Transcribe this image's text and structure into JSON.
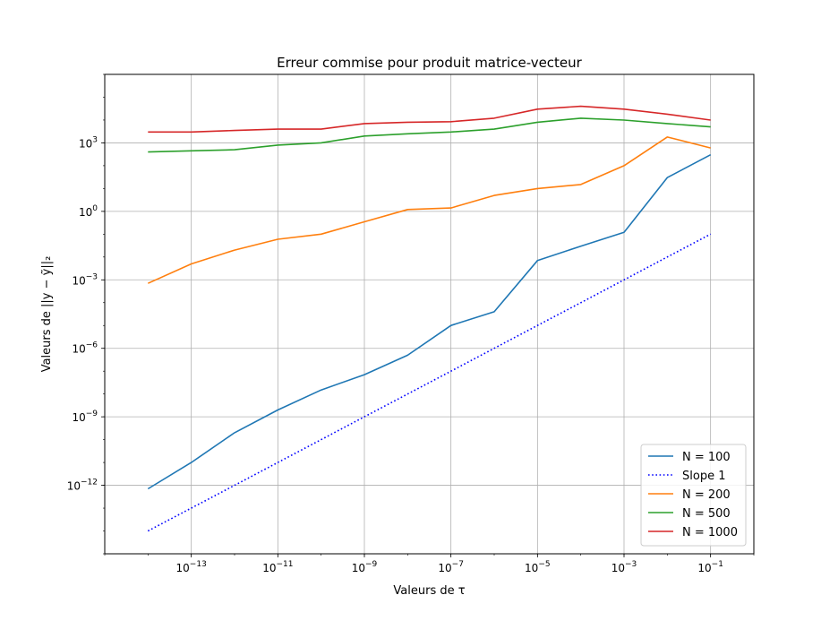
{
  "chart_data": {
    "type": "line",
    "title": "Erreur commise pour produit matrice-vecteur",
    "xlabel": "Valeurs de τ",
    "ylabel": "Valeurs de ||y − ỹ||₂",
    "xscale": "log",
    "yscale": "log",
    "xlim": [
      1e-15,
      1.0
    ],
    "ylim": [
      1e-15,
      1000000.0
    ],
    "grid": true,
    "legend_position": "lower right",
    "x": [
      1e-14,
      1e-13,
      1e-12,
      1e-11,
      1e-10,
      1e-09,
      1e-08,
      1e-07,
      1e-06,
      1e-05,
      0.0001,
      0.001,
      0.01,
      0.1
    ],
    "series": [
      {
        "name": "N = 100",
        "color": "#1f77b4",
        "style": "solid",
        "values": [
          7e-13,
          1e-11,
          2e-10,
          2e-09,
          1.5e-08,
          7e-08,
          5e-07,
          1e-05,
          4e-05,
          0.007,
          0.03,
          0.12,
          30.0,
          300.0
        ]
      },
      {
        "name": "Slope 1",
        "color": "#0000ff",
        "style": "dotted",
        "values": [
          1e-14,
          1e-13,
          1e-12,
          1e-11,
          1e-10,
          1e-09,
          1e-08,
          1e-07,
          1e-06,
          1e-05,
          0.0001,
          0.001,
          0.01,
          0.1
        ]
      },
      {
        "name": "N = 200",
        "color": "#ff7f0e",
        "style": "solid",
        "values": [
          0.0007,
          0.005,
          0.02,
          0.06,
          0.1,
          0.35,
          1.2,
          1.4,
          5,
          10.0,
          15.0,
          100.0,
          1800.0,
          600.0
        ]
      },
      {
        "name": "N = 500",
        "color": "#2ca02c",
        "style": "solid",
        "values": [
          400.0,
          450.0,
          500.0,
          800.0,
          1000.0,
          2000.0,
          2500.0,
          3000.0,
          4000.0,
          8000.0,
          12000.0,
          10000.0,
          7000.0,
          5000.0
        ]
      },
      {
        "name": "N = 1000",
        "color": "#d62728",
        "style": "solid",
        "values": [
          3000.0,
          3000.0,
          3500.0,
          4000.0,
          4000.0,
          7000.0,
          8000.0,
          8500.0,
          12000.0,
          30000.0,
          40000.0,
          30000.0,
          18000.0,
          10000.0
        ]
      }
    ],
    "xticks": [
      {
        "base": "10",
        "exp": "−13",
        "value": 1e-13
      },
      {
        "base": "10",
        "exp": "−11",
        "value": 1e-11
      },
      {
        "base": "10",
        "exp": "−9",
        "value": 1e-09
      },
      {
        "base": "10",
        "exp": "−7",
        "value": 1e-07
      },
      {
        "base": "10",
        "exp": "−5",
        "value": 1e-05
      },
      {
        "base": "10",
        "exp": "−3",
        "value": 0.001
      },
      {
        "base": "10",
        "exp": "−1",
        "value": 0.1
      }
    ],
    "yticks": [
      {
        "base": "10",
        "exp": "−12",
        "value": 1e-12
      },
      {
        "base": "10",
        "exp": "−9",
        "value": 1e-09
      },
      {
        "base": "10",
        "exp": "−6",
        "value": 1e-06
      },
      {
        "base": "10",
        "exp": "−3",
        "value": 0.001
      },
      {
        "base": "10",
        "exp": "0",
        "value": 1.0
      },
      {
        "base": "10",
        "exp": "3",
        "value": 1000.0
      }
    ]
  }
}
